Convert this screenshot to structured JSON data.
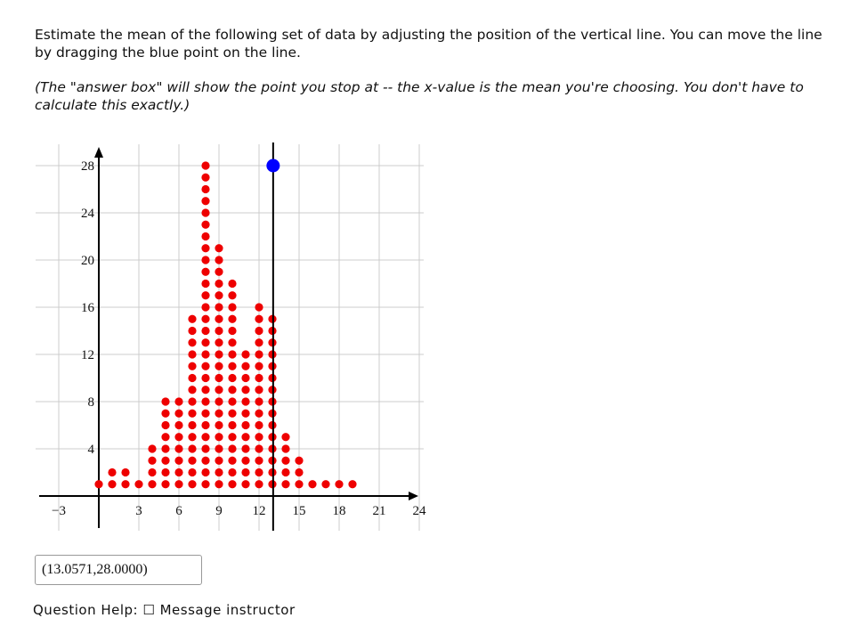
{
  "instructions": {
    "main": "Estimate the mean of the following set of data by adjusting the position of the vertical line. You can move the line by dragging the blue point on the line.",
    "note": "(The \"answer box\" will show the point you stop at -- the x-value is the mean you're choosing. You don't have to calculate this exactly.)"
  },
  "answer_box": {
    "value": "(13.0571,28.0000)"
  },
  "footer_fragment": {
    "text": "Question Help: ☐ Message instructor"
  },
  "colors": {
    "dot": "#ee0000",
    "handle": "#0000ff",
    "axis": "#000000",
    "grid": "#cccccc"
  },
  "chart_data": {
    "type": "scatter",
    "title": "",
    "xlabel": "",
    "ylabel": "",
    "xlim": [
      -3,
      24.5
    ],
    "ylim": [
      -1,
      29
    ],
    "grid": true,
    "x_ticks": [
      -3,
      3,
      6,
      9,
      12,
      15,
      18,
      21,
      24
    ],
    "y_ticks": [
      4,
      8,
      12,
      16,
      20,
      24,
      28
    ],
    "dot_columns": [
      {
        "x": 0,
        "count": 1
      },
      {
        "x": 1,
        "count": 2
      },
      {
        "x": 2,
        "count": 2
      },
      {
        "x": 3,
        "count": 1
      },
      {
        "x": 4,
        "count": 4
      },
      {
        "x": 5,
        "count": 8
      },
      {
        "x": 6,
        "count": 8
      },
      {
        "x": 7,
        "count": 15
      },
      {
        "x": 8,
        "count": 28
      },
      {
        "x": 9,
        "count": 21
      },
      {
        "x": 10,
        "count": 18
      },
      {
        "x": 11,
        "count": 12
      },
      {
        "x": 12,
        "count": 16
      },
      {
        "x": 13,
        "count": 15
      },
      {
        "x": 14,
        "count": 5
      },
      {
        "x": 15,
        "count": 3
      },
      {
        "x": 16,
        "count": 1
      },
      {
        "x": 17,
        "count": 1
      },
      {
        "x": 18,
        "count": 1
      },
      {
        "x": 19,
        "count": 1
      }
    ],
    "mean_line": {
      "x": 13.0571,
      "handle_y": 28.0
    }
  }
}
